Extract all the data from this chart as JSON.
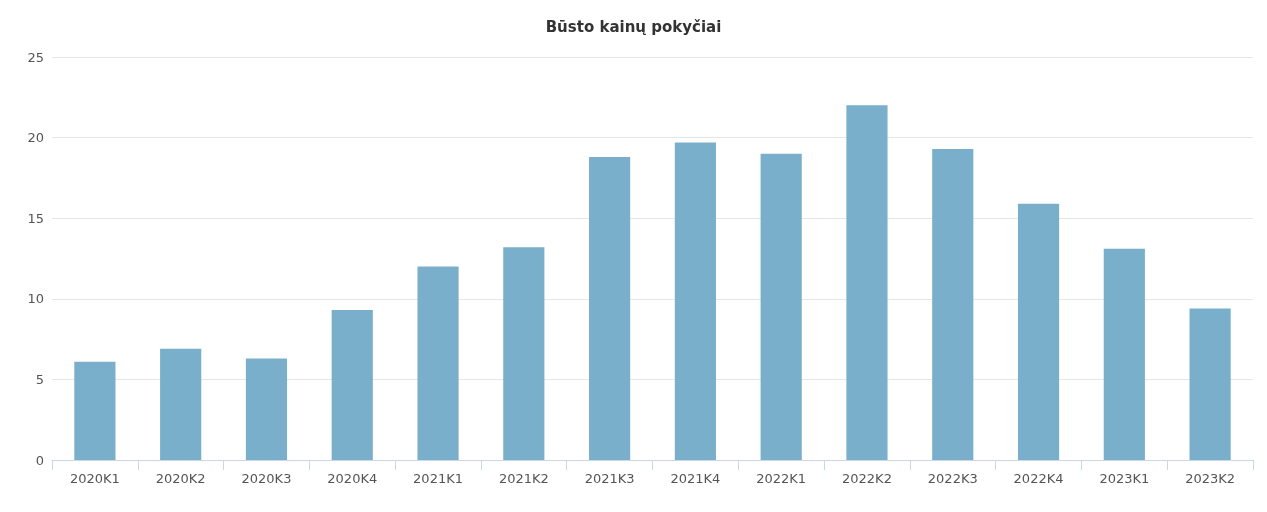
{
  "chart_data": {
    "type": "bar",
    "title": "Būsto kainų pokyčiai",
    "categories": [
      "2020K1",
      "2020K2",
      "2020K3",
      "2020K4",
      "2021K1",
      "2021K2",
      "2021K3",
      "2021K4",
      "2022K1",
      "2022K2",
      "2022K3",
      "2022K4",
      "2023K1",
      "2023K2"
    ],
    "values": [
      6.1,
      6.9,
      6.3,
      9.3,
      12.0,
      13.2,
      18.8,
      19.7,
      19.0,
      22.0,
      19.3,
      15.9,
      13.1,
      9.4
    ],
    "color": "#7aafcb",
    "ylim": [
      0,
      25
    ],
    "yticks": [
      0,
      5,
      10,
      15,
      20,
      25
    ],
    "grid": "y"
  }
}
